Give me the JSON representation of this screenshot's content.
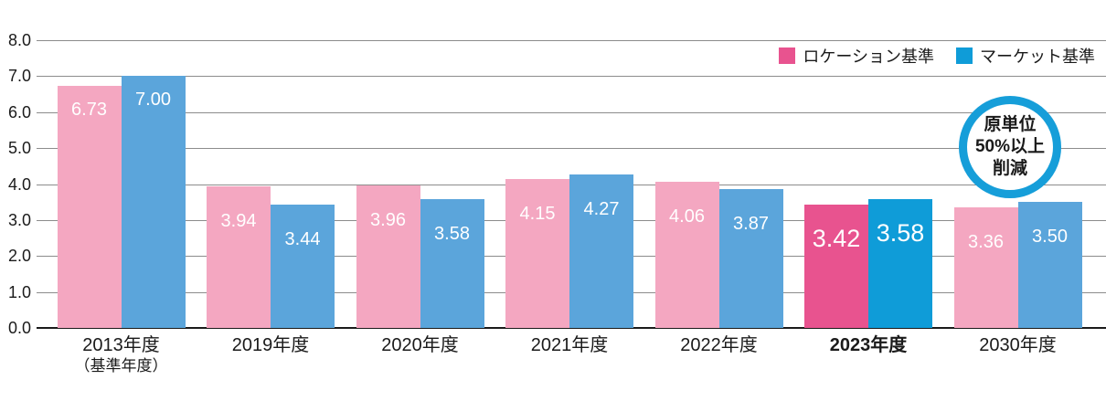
{
  "chart_data": {
    "type": "bar",
    "title": "",
    "categories": [
      {
        "label": "2013年度",
        "sublabel": "（基準年度）",
        "bold": false
      },
      {
        "label": "2019年度",
        "sublabel": "",
        "bold": false
      },
      {
        "label": "2020年度",
        "sublabel": "",
        "bold": false
      },
      {
        "label": "2021年度",
        "sublabel": "",
        "bold": false
      },
      {
        "label": "2022年度",
        "sublabel": "",
        "bold": false
      },
      {
        "label": "2023年度",
        "sublabel": "",
        "bold": true
      },
      {
        "label": "2030年度",
        "sublabel": "",
        "bold": false
      }
    ],
    "series": [
      {
        "name": "ロケーション基準",
        "color": "#F4A7C1",
        "highlight_color": "#E8538F",
        "legend_color": "#E8538F",
        "values": [
          6.73,
          3.94,
          3.96,
          4.15,
          4.06,
          3.42,
          3.36
        ],
        "labels": [
          "6.73",
          "3.94",
          "3.96",
          "4.15",
          "4.06",
          "3.42",
          "3.36"
        ]
      },
      {
        "name": "マーケット基準",
        "color": "#5BA5DB",
        "highlight_color": "#0F9CD8",
        "legend_color": "#0F9CD8",
        "values": [
          7.0,
          3.44,
          3.58,
          4.27,
          3.87,
          3.58,
          3.5
        ],
        "labels": [
          "7.00",
          "3.44",
          "3.58",
          "4.27",
          "3.87",
          "3.58",
          "3.50"
        ]
      }
    ],
    "highlight_index": 5,
    "ylim": [
      0,
      8
    ],
    "ytick_step": 1,
    "ytick_labels": [
      "0.0",
      "1.0",
      "2.0",
      "3.0",
      "4.0",
      "5.0",
      "6.0",
      "7.0",
      "8.0"
    ],
    "grid": true,
    "legend_position": "top-right"
  },
  "badge": {
    "lines": [
      "原単位",
      "50%以上",
      "削減"
    ],
    "ring_color": "#169ED9"
  }
}
